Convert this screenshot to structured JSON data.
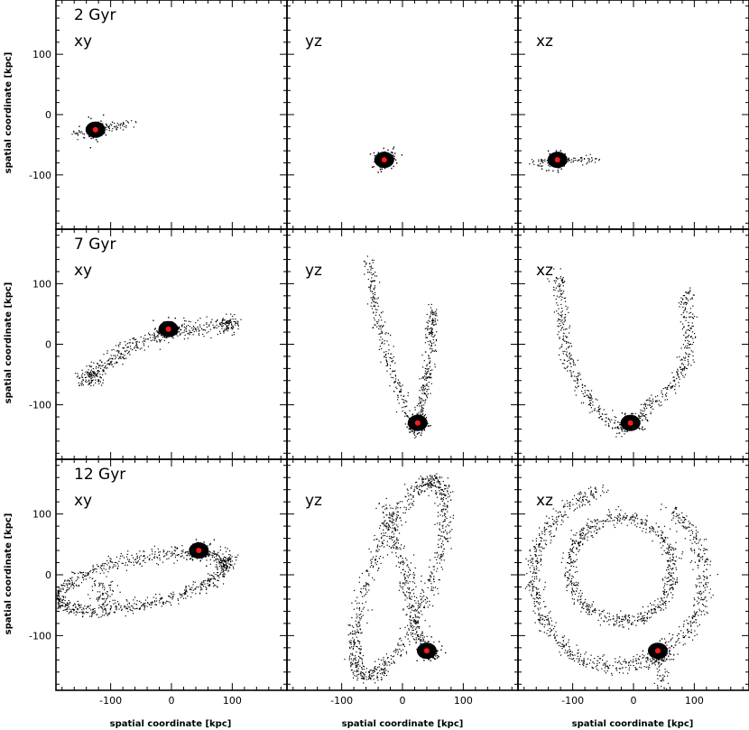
{
  "chart_data": {
    "type": "scatter",
    "xlabel": "spatial coordinate [kpc]",
    "ylabel": "spatial coordinate [kpc]",
    "xlim": [
      -190,
      190
    ],
    "ylim": [
      -190,
      190
    ],
    "x_ticks": [
      -100,
      0,
      100
    ],
    "y_ticks": [
      -100,
      0,
      100
    ],
    "grid": false,
    "colors": {
      "particles": "#000000",
      "satellite_center": "#ff1a1a",
      "frame": "#000000"
    },
    "rows": [
      {
        "epoch": "2 Gyr",
        "panels": [
          {
            "projection": "xy",
            "center": [
              -125,
              -25
            ],
            "stream": "short tail along x from -160 to -60"
          },
          {
            "projection": "yz",
            "center": [
              -30,
              -75
            ],
            "stream": "compact, no visible tail"
          },
          {
            "projection": "xz",
            "center": [
              -125,
              -75
            ],
            "stream": "short tail along x from -160 to -60"
          }
        ]
      },
      {
        "epoch": "7 Gyr",
        "panels": [
          {
            "projection": "xy",
            "center": [
              -5,
              25
            ],
            "stream": "elongated band from (-150,-55) to (100,35)"
          },
          {
            "projection": "yz",
            "center": [
              25,
              -130
            ],
            "stream": "narrow loop, y from -60 to 50, z from -160 to 140"
          },
          {
            "projection": "xz",
            "center": [
              -5,
              -130
            ],
            "stream": "open arc, x from -130 to 95, z from -150 to 125"
          }
        ]
      },
      {
        "epoch": "12 Gyr",
        "panels": [
          {
            "projection": "xy",
            "center": [
              45,
              40
            ],
            "stream": "tilted elliptical ring, x from -185 to 100, y from -60 to 45"
          },
          {
            "projection": "yz",
            "center": [
              40,
              -125
            ],
            "stream": "tilted elongated loop plus inner arm"
          },
          {
            "projection": "xz",
            "center": [
              40,
              -125
            ],
            "stream": "large ring radius ~140 plus inner ring radius ~85"
          }
        ]
      }
    ]
  }
}
